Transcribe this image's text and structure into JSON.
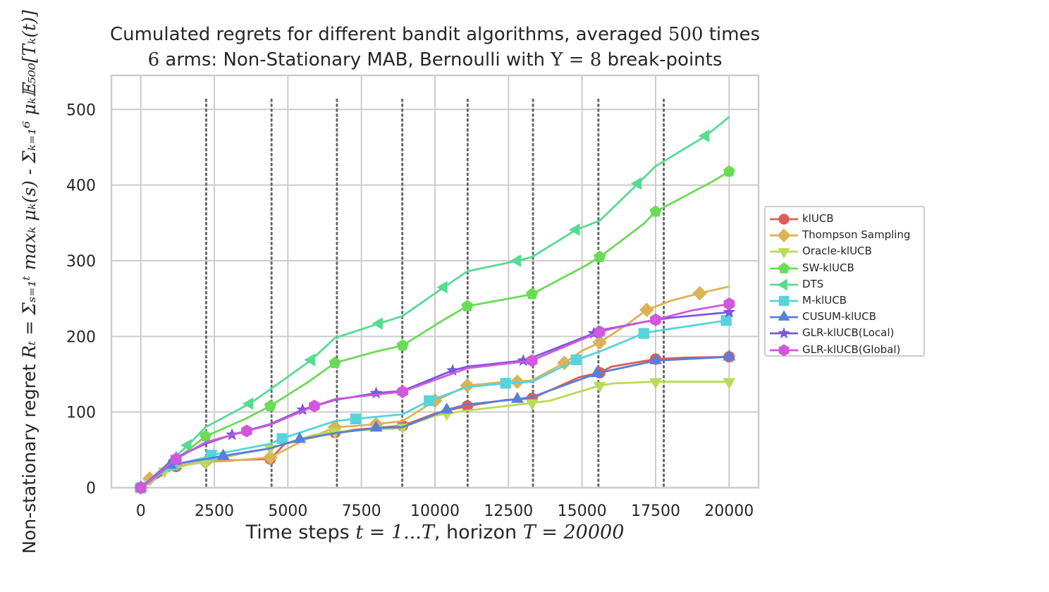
{
  "title": {
    "line1_before": "Cumulated regrets for different bandit algorithms, averaged ",
    "line1_math": "500",
    "line1_after": " times",
    "line2_math_start": "6",
    "line2_middle": " arms: Non-Stationary MAB, Bernoulli with ",
    "line2_math_mid": "Υ = 8",
    "line2_after": " break-points"
  },
  "xlabel": {
    "before": "Time steps ",
    "math1": "t = 1...T",
    "middle": ", horizon ",
    "math2": "T = 20000"
  },
  "ylabel": {
    "before": "Non-stationary regret ",
    "math": "R_t = Σ_{s=1}^{t} max_k μ_k(s) - Σ_{k=1}^{6} μ_k E_500[T_k(t)]",
    "math_display": "Rₜ = Σₛ₌₁ᵗ maxₖ μₖ(s) - Σₖ₌₁⁶ μₖ𝔼₅₀₀[Tₖ(t)]"
  },
  "chart_data": {
    "type": "line",
    "xlim": [
      -1000,
      21000
    ],
    "ylim": [
      0,
      545
    ],
    "xticks": [
      0,
      2500,
      5000,
      7500,
      10000,
      12500,
      15000,
      17500,
      20000
    ],
    "yticks": [
      0,
      100,
      200,
      300,
      400,
      500
    ],
    "grid": true,
    "legend_position": "right, outside plot",
    "break_points": [
      2222,
      4444,
      6667,
      8889,
      11111,
      13333,
      15556,
      17778
    ],
    "series": [
      {
        "name": "klUCB",
        "color": "#db5f57",
        "marker": "circle",
        "x": [
          0,
          1200,
          2200,
          4400,
          4900,
          6600,
          7400,
          8900,
          10000,
          11100,
          12400,
          13300,
          14900,
          15600,
          16000,
          17500,
          18500,
          20000
        ],
        "y": [
          0,
          28,
          35,
          38,
          58,
          73,
          77,
          82,
          98,
          108,
          116,
          118,
          146,
          152,
          160,
          170,
          172,
          173
        ]
      },
      {
        "name": "Thompson Sampling",
        "color": "#dbb357",
        "marker": "diamond",
        "x": [
          0,
          300,
          1200,
          2200,
          2900,
          4400,
          5400,
          6600,
          7400,
          8000,
          8900,
          10000,
          10200,
          11100,
          12400,
          12800,
          13300,
          14400,
          15000,
          15600,
          16500,
          17200,
          18000,
          19000,
          20000
        ],
        "y": [
          0,
          12,
          28,
          34,
          35,
          40,
          60,
          80,
          82,
          84,
          88,
          115,
          118,
          135,
          140,
          140,
          142,
          165,
          181,
          192,
          215,
          235,
          247,
          257,
          266
        ]
      },
      {
        "name": "Oracle-klUCB",
        "color": "#b9db57",
        "marker": "triangle-down",
        "x": [
          0,
          800,
          1800,
          2200,
          3400,
          4400,
          5900,
          6600,
          8600,
          8900,
          10000,
          10400,
          11100,
          13300,
          13900,
          15600,
          16100,
          17500,
          18700,
          20000
        ],
        "y": [
          0,
          22,
          32,
          34,
          45,
          52,
          70,
          74,
          78,
          80,
          95,
          98,
          102,
          112,
          115,
          135,
          138,
          140,
          140,
          140
        ]
      },
      {
        "name": "SW-klUCB",
        "color": "#6adb57",
        "marker": "pentagon",
        "x": [
          0,
          2200,
          3500,
          4400,
          5700,
          6600,
          8000,
          8900,
          10300,
          11100,
          12800,
          13300,
          15100,
          15600,
          17100,
          17500,
          19400,
          20000
        ],
        "y": [
          0,
          68,
          90,
          108,
          140,
          165,
          180,
          188,
          222,
          240,
          252,
          256,
          293,
          305,
          349,
          365,
          404,
          418
        ]
      },
      {
        "name": "DTS",
        "color": "#57db92",
        "marker": "triangle-left",
        "x": [
          0,
          1600,
          2200,
          3700,
          4400,
          5800,
          6600,
          8100,
          8900,
          10300,
          11100,
          12800,
          13300,
          14800,
          15600,
          16900,
          17500,
          19200,
          20000
        ],
        "y": [
          0,
          56,
          80,
          111,
          130,
          169,
          198,
          217,
          227,
          265,
          286,
          300,
          305,
          341,
          353,
          402,
          425,
          465,
          490
        ]
      },
      {
        "name": "M-klUCB",
        "color": "#57d3db",
        "marker": "square",
        "x": [
          0,
          1100,
          2200,
          2400,
          4400,
          4800,
          6600,
          7300,
          8900,
          9800,
          11100,
          12400,
          13300,
          14800,
          15600,
          17100,
          17500,
          19900
        ],
        "y": [
          0,
          30,
          40,
          43,
          58,
          65,
          88,
          91,
          97,
          115,
          133,
          138,
          140,
          169,
          180,
          204,
          207,
          221
        ]
      },
      {
        "name": "CUSUM-klUCB",
        "color": "#577fdb",
        "marker": "triangle-up",
        "x": [
          0,
          1000,
          2200,
          2800,
          4400,
          5400,
          6600,
          8000,
          8900,
          10400,
          11100,
          12800,
          13300,
          15500,
          15600,
          17500,
          18000,
          20000
        ],
        "y": [
          0,
          30,
          38,
          42,
          52,
          64,
          72,
          79,
          80,
          103,
          110,
          117,
          120,
          151,
          152,
          168,
          169,
          173
        ]
      },
      {
        "name": "GLR-klUCB(Local)",
        "color": "#7a57db",
        "marker": "star",
        "x": [
          0,
          1200,
          2200,
          3100,
          4400,
          5500,
          6600,
          8000,
          8900,
          10600,
          11100,
          13000,
          13300,
          15400,
          15600,
          17500,
          18100,
          20000
        ],
        "y": [
          0,
          40,
          58,
          70,
          84,
          103,
          116,
          125,
          128,
          155,
          160,
          168,
          172,
          204,
          208,
          222,
          225,
          232
        ]
      },
      {
        "name": "GLR-klUCB(Global)",
        "color": "#d157db",
        "marker": "hexagon",
        "x": [
          0,
          1200,
          2200,
          3600,
          4400,
          5900,
          6600,
          8900,
          11100,
          13300,
          13700,
          15600,
          16100,
          17500,
          18700,
          20000
        ],
        "y": [
          0,
          38,
          60,
          75,
          83,
          108,
          117,
          127,
          158,
          168,
          175,
          206,
          211,
          222,
          234,
          243
        ]
      }
    ]
  }
}
